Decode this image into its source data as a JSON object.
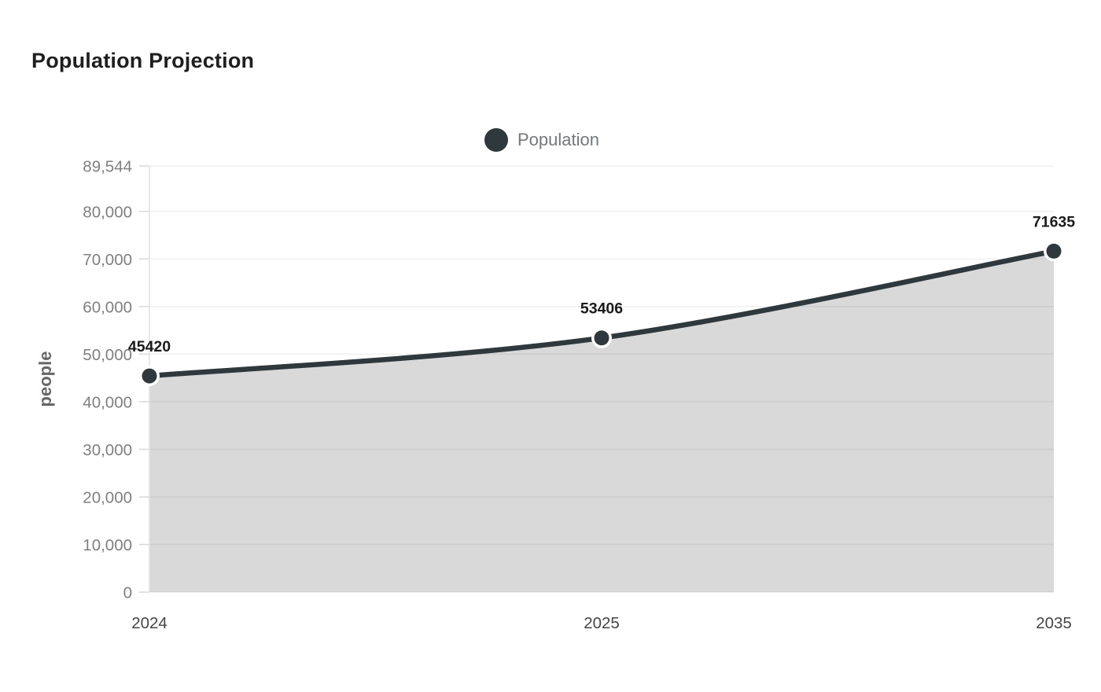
{
  "chart_data": {
    "type": "area",
    "title": "Population Projection",
    "xlabel": "",
    "ylabel": "people",
    "categories": [
      "2024",
      "2025",
      "2035"
    ],
    "series": [
      {
        "name": "Population",
        "values": [
          45420,
          53406,
          71635
        ]
      }
    ],
    "data_labels": [
      "45420",
      "53406",
      "71635"
    ],
    "ylim": [
      0,
      89544
    ],
    "yticks": [
      {
        "value": 0,
        "label": "0"
      },
      {
        "value": 10000,
        "label": "10,000"
      },
      {
        "value": 20000,
        "label": "20,000"
      },
      {
        "value": 30000,
        "label": "30,000"
      },
      {
        "value": 40000,
        "label": "40,000"
      },
      {
        "value": 50000,
        "label": "50,000"
      },
      {
        "value": 60000,
        "label": "60,000"
      },
      {
        "value": 70000,
        "label": "70,000"
      },
      {
        "value": 80000,
        "label": "80,000"
      },
      {
        "value": 89544,
        "label": "89,544"
      }
    ],
    "grid": true,
    "smooth": true,
    "legend_position": "top-center",
    "colors": {
      "line": "#2f383d",
      "marker": "#2f383d",
      "marker_border": "#ffffff",
      "area": "#d9d9da",
      "grid": "rgba(0,0,0,0.055)",
      "axis_line": "#e2e2e2",
      "tick": "#d9d9d9",
      "y_tick_label": "#7f7f7f",
      "x_tick_label": "#454545",
      "data_label": "#1b1b1b",
      "axis_title": "#666666",
      "title": "#1f1f1f",
      "legend_text": "#75787b"
    }
  }
}
